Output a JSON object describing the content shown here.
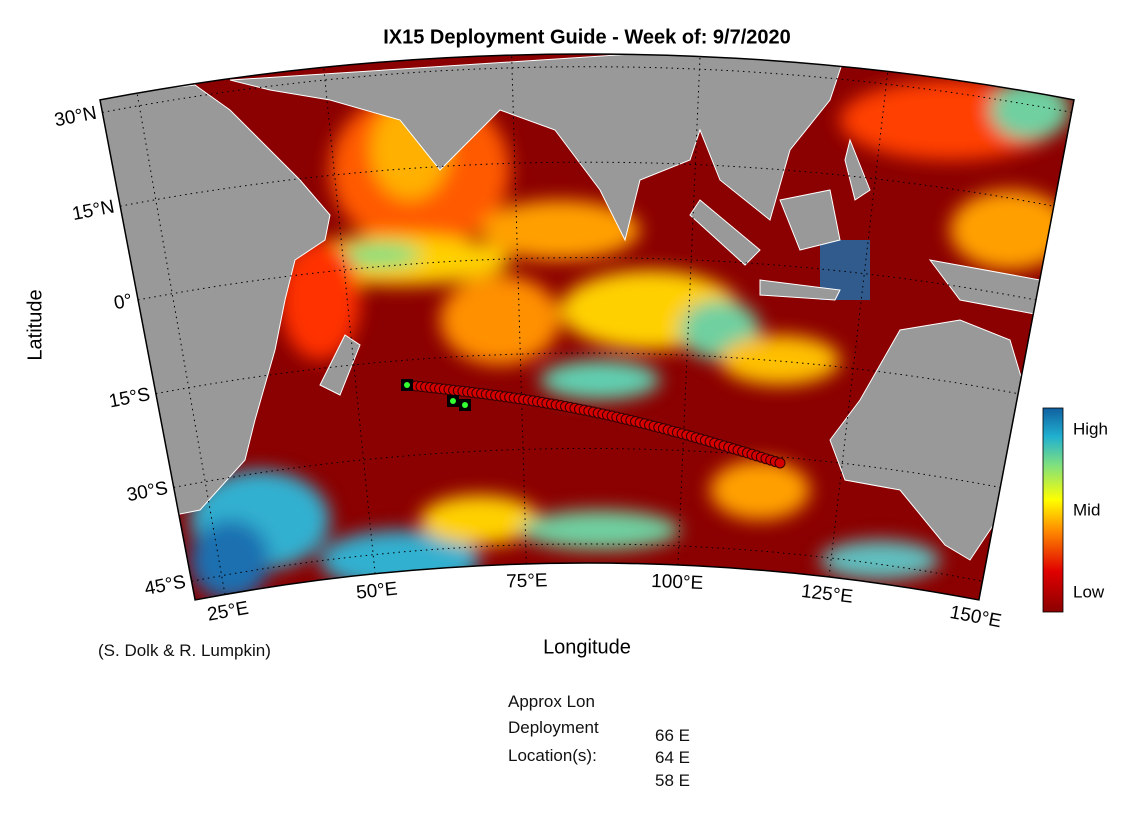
{
  "title": "IX15 Deployment Guide - Week of: 9/7/2020",
  "y_axis_label": "Latitude",
  "x_axis_label": "Longitude",
  "latlim": [
    -48,
    32
  ],
  "lonlim": [
    20,
    150
  ],
  "latitude_ticks": [
    {
      "value": 30,
      "label": "30°N"
    },
    {
      "value": 15,
      "label": "15°N"
    },
    {
      "value": 0,
      "label": "0°"
    },
    {
      "value": -15,
      "label": "15°S"
    },
    {
      "value": -30,
      "label": "30°S"
    },
    {
      "value": -45,
      "label": "45°S"
    }
  ],
  "longitude_ticks": [
    {
      "value": 25,
      "label": "25°E"
    },
    {
      "value": 50,
      "label": "50°E"
    },
    {
      "value": 75,
      "label": "75°E"
    },
    {
      "value": 100,
      "label": "100°E"
    },
    {
      "value": 125,
      "label": "125°E"
    },
    {
      "value": 150,
      "label": "150°E"
    }
  ],
  "colorbar": {
    "labels": [
      "High",
      "Mid",
      "Low"
    ]
  },
  "credit": "(S. Dolk & R. Lumpkin)",
  "deployment": {
    "heading": [
      "Approx Lon",
      "Deployment",
      "Location(s):"
    ],
    "locations": [
      "66 E",
      "64 E",
      "58 E"
    ]
  }
}
